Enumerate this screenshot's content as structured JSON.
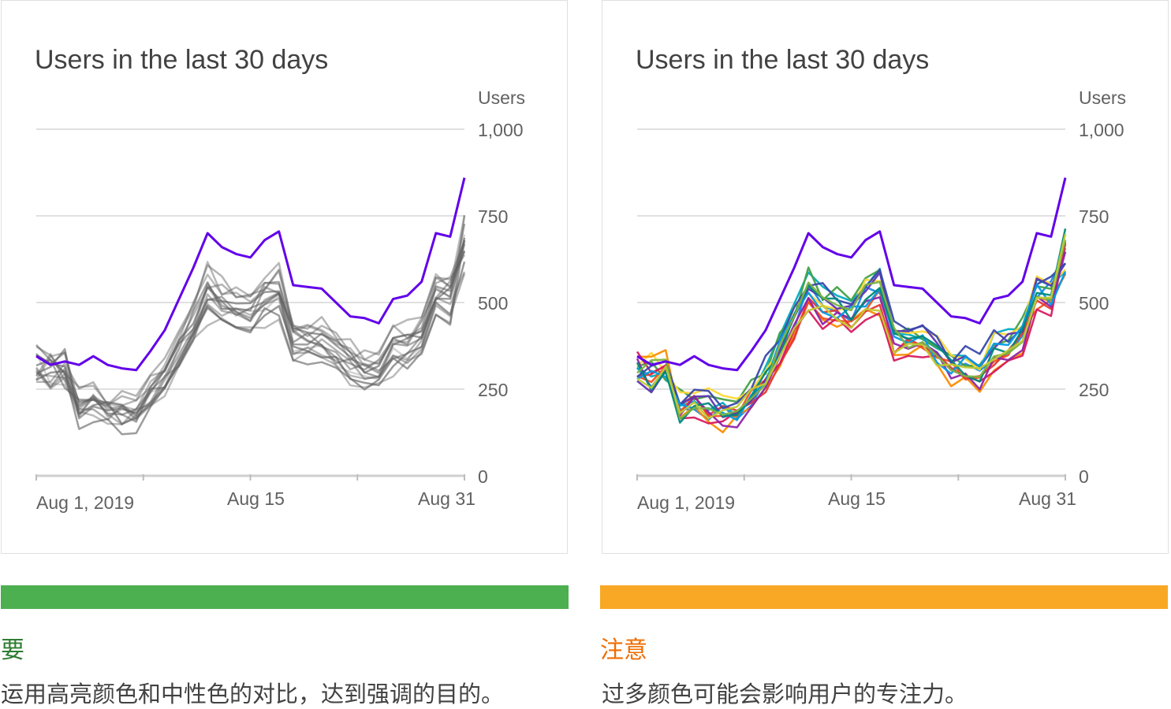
{
  "colors": {
    "do_bar": "#4caf50",
    "do_text": "#2e7d32",
    "caution_bar": "#f9a825",
    "caution_text": "#ef6c00",
    "highlight": "#6200ea",
    "neutral": "#616161",
    "gridline": "#e0e0e0"
  },
  "panels": [
    {
      "verdict": "要",
      "description": "运用高亮颜色和中性色的对比，达到强调的目的。"
    },
    {
      "verdict": "注意",
      "description": "过多颜色可能会影响用户的专注力。"
    }
  ],
  "chart_data": [
    {
      "type": "line",
      "title": "Users in the last 30 days",
      "ylabel": "Users",
      "ylim": [
        0,
        1000
      ],
      "yticks": [
        0,
        250,
        500,
        "750",
        "1,000"
      ],
      "ytick_labels": [
        "0",
        "250",
        "500",
        "750",
        "1,000"
      ],
      "xlabels": [
        "Aug 1, 2019",
        "Aug 15",
        "Aug 31"
      ],
      "x": [
        "Aug 1",
        "Aug 2",
        "Aug 3",
        "Aug 4",
        "Aug 5",
        "Aug 6",
        "Aug 7",
        "Aug 8",
        "Aug 9",
        "Aug 10",
        "Aug 11",
        "Aug 12",
        "Aug 13",
        "Aug 14",
        "Aug 15",
        "Aug 16",
        "Aug 17",
        "Aug 18",
        "Aug 19",
        "Aug 20",
        "Aug 21",
        "Aug 22",
        "Aug 23",
        "Aug 24",
        "Aug 25",
        "Aug 26",
        "Aug 27",
        "Aug 28",
        "Aug 29",
        "Aug 30",
        "Aug 31"
      ],
      "highlight_series": {
        "values": [
          345,
          320,
          330,
          320,
          345,
          320,
          310,
          305,
          360,
          420,
          510,
          600,
          700,
          660,
          640,
          630,
          680,
          705,
          550,
          545,
          540,
          500,
          460,
          455,
          440,
          510,
          520,
          560,
          700,
          690,
          860
        ]
      },
      "series_style": "neutral",
      "series_count": 15
    },
    {
      "type": "line",
      "title": "Users in the last 30 days",
      "ylabel": "Users",
      "ylim": [
        0,
        1000
      ],
      "ytick_labels": [
        "0",
        "250",
        "500",
        "750",
        "1,000"
      ],
      "xlabels": [
        "Aug 1, 2019",
        "Aug 15",
        "Aug 31"
      ],
      "highlight_series": {
        "values": [
          345,
          320,
          330,
          320,
          345,
          320,
          310,
          305,
          360,
          420,
          510,
          600,
          700,
          660,
          640,
          630,
          680,
          705,
          550,
          545,
          540,
          500,
          460,
          455,
          440,
          510,
          520,
          560,
          700,
          690,
          860
        ]
      },
      "series_style": "multicolor",
      "series_count": 15,
      "palette": [
        "#1e88e5",
        "#00acc1",
        "#43a047",
        "#fdd835",
        "#fb8c00",
        "#f4511e",
        "#e53935",
        "#d81b60",
        "#8e24aa",
        "#5e35b1",
        "#3949ab",
        "#039be5",
        "#00897b",
        "#7cb342",
        "#c0ca33"
      ]
    }
  ]
}
